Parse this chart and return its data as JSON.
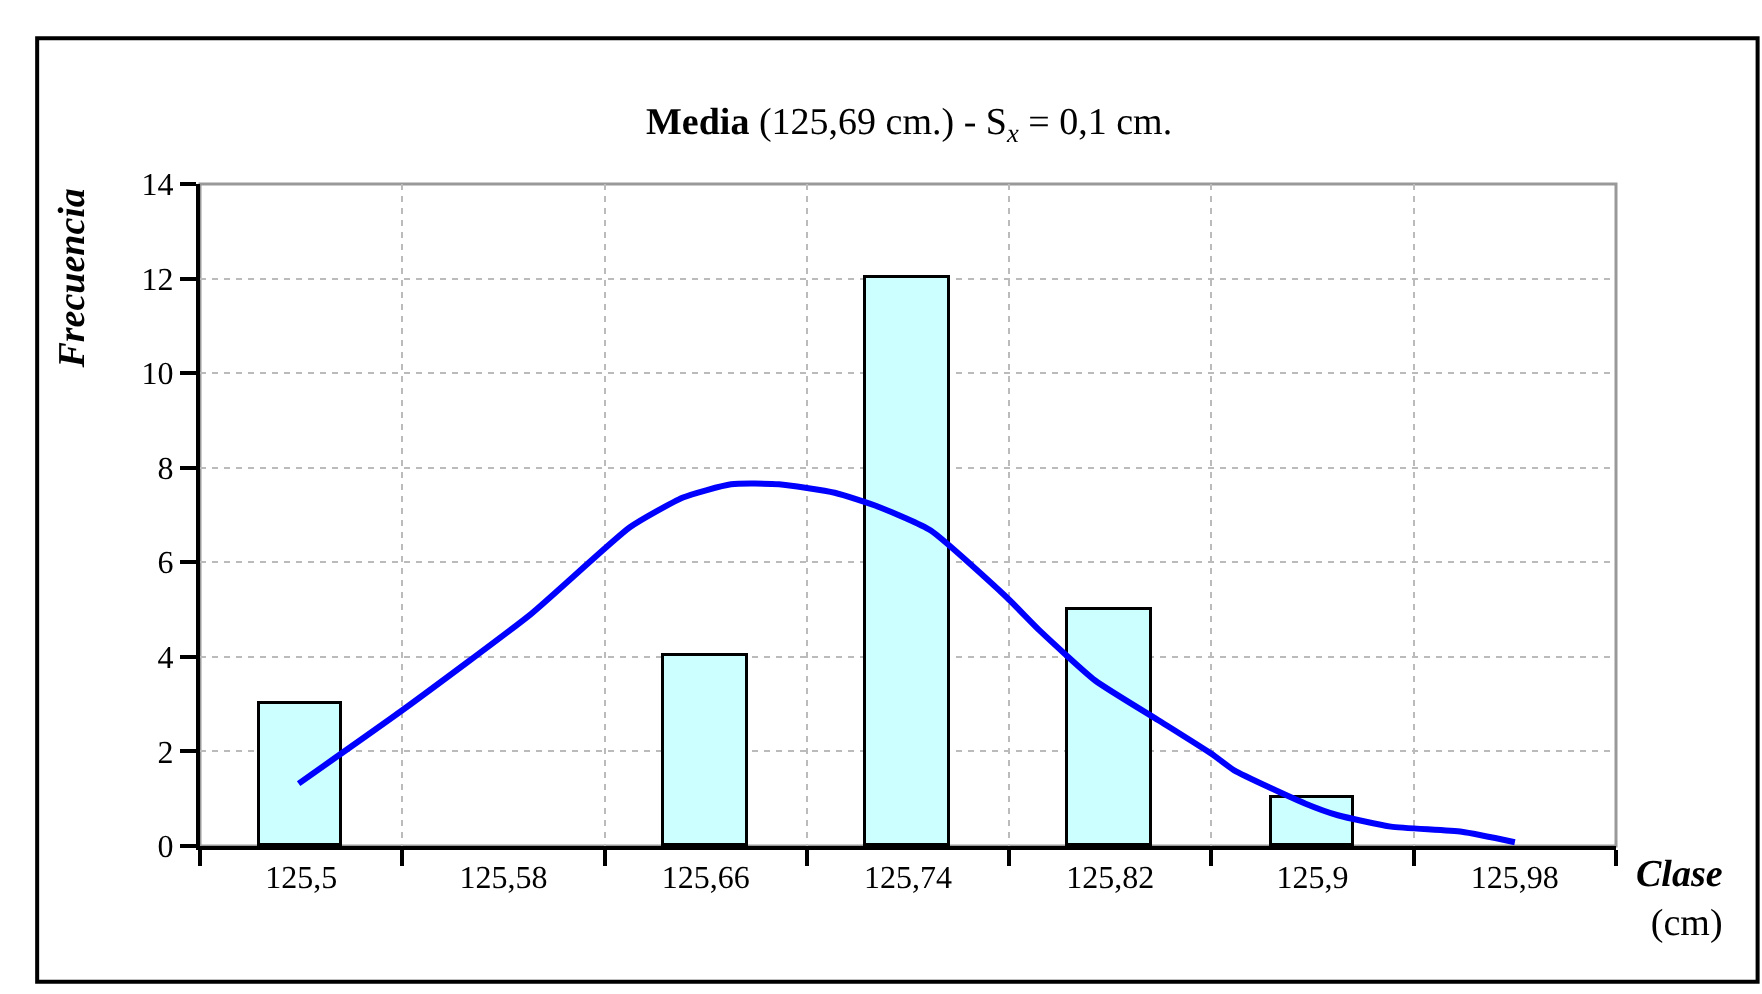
{
  "chart_data": {
    "type": "bar",
    "title": "Media (125,69 cm.) - S$_{x}$ = 0,1 cm.",
    "xlabel": "Clase (cm)",
    "ylabel": "Frecuencia",
    "x": [
      125.5,
      125.58,
      125.66,
      125.74,
      125.82,
      125.9,
      125.98
    ],
    "series": [
      {
        "color": "#ccffff",
        "values": [
          3,
          0,
          4,
          12,
          5,
          1,
          0
        ]
      },
      {
        "type": "line",
        "color": "#0000ff",
        "x": [
          125.499,
          125.54,
          125.591,
          125.63,
          125.651,
          125.67,
          125.689,
          125.711,
          125.729,
          125.749,
          125.779,
          125.792,
          125.814,
          125.839,
          125.86,
          125.869,
          125.897,
          125.91,
          125.931,
          125.959,
          125.98
        ],
        "values": [
          1.32,
          2.87,
          4.91,
          6.74,
          7.37,
          7.65,
          7.65,
          7.47,
          7.16,
          6.67,
          5.26,
          4.56,
          3.5,
          2.66,
          1.95,
          1.6,
          0.9,
          0.65,
          0.41,
          0.3,
          0.08
        ]
      }
    ],
    "xlim": [
      125.46,
      126.02
    ],
    "xticks": [
      {
        "value": 125.5,
        "label": "125,5"
      },
      {
        "value": 125.58,
        "label": "125,58"
      },
      {
        "value": 125.66,
        "label": "125,66"
      },
      {
        "value": 125.74,
        "label": "125,74"
      },
      {
        "value": 125.82,
        "label": "125,82"
      },
      {
        "value": 125.9,
        "label": "125,9"
      },
      {
        "value": 125.98,
        "label": "125,98"
      }
    ],
    "ylim": [
      0,
      14
    ],
    "yticks": [
      0,
      2,
      4,
      6,
      8,
      10,
      12,
      14
    ],
    "grid": true,
    "marker": "none",
    "line_style": "solid"
  }
}
